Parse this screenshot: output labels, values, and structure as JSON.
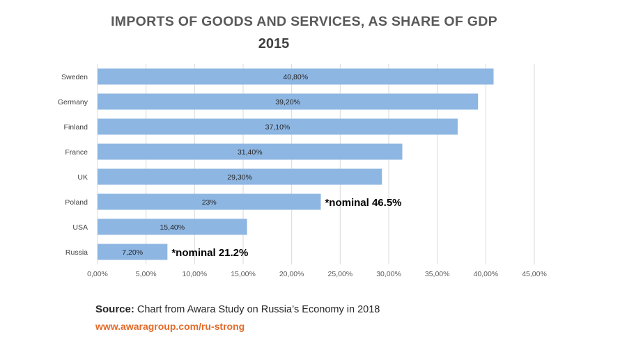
{
  "chart_data": {
    "type": "bar",
    "orientation": "horizontal",
    "title": "IMPORTS OF GOODS AND SERVICES, AS SHARE OF GDP",
    "subtitle": "2015",
    "categories": [
      "Sweden",
      "Germany",
      "Finland",
      "France",
      "UK",
      "Poland",
      "USA",
      "Russia"
    ],
    "values": [
      40.8,
      39.2,
      37.1,
      31.4,
      29.3,
      23,
      15.4,
      7.2
    ],
    "data_labels": [
      "40,80%",
      "39,20%",
      "37,10%",
      "31,40%",
      "29,30%",
      "23%",
      "15,40%",
      "7,20%"
    ],
    "annotations": [
      {
        "category": "Poland",
        "text": "*nominal 46.5%"
      },
      {
        "category": "Russia",
        "text": "*nominal 21.2%"
      }
    ],
    "x_ticks": [
      "0,00%",
      "5,00%",
      "10,00%",
      "15,00%",
      "20,00%",
      "25,00%",
      "30,00%",
      "35,00%",
      "40,00%",
      "45,00%"
    ],
    "xlim": [
      0,
      45
    ],
    "grid": "vertical",
    "bar_color": "#8db6e2"
  },
  "source": {
    "label": "Source:",
    "text": "Chart from Awara Study on Russia’s Economy in 2018"
  },
  "link": "www.awaragroup.com/ru-strong"
}
